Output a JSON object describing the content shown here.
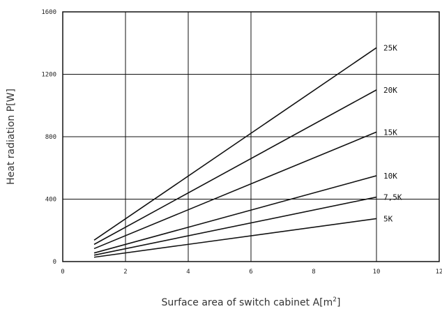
{
  "chart_data": {
    "type": "line",
    "title": "",
    "xlabel": "Surface area of switch cabinet A[m",
    "xlabel_superscript": "2",
    "xlabel_suffix": "]",
    "ylabel": "Heat radiation P[W]",
    "xlim": [
      0,
      12
    ],
    "ylim": [
      0,
      1600
    ],
    "x_ticks": [
      0,
      2,
      4,
      6,
      8,
      10,
      12
    ],
    "y_ticks": [
      0,
      400,
      800,
      1200,
      1600
    ],
    "major_grid_x": [
      2,
      4,
      6,
      10
    ],
    "major_grid_y": [
      400,
      800,
      1200
    ],
    "grid": true,
    "legend": "inline-right",
    "line_color": "#111111",
    "series": [
      {
        "name": "25K",
        "x": [
          1,
          10
        ],
        "y": [
          137,
          1370
        ]
      },
      {
        "name": "20K",
        "x": [
          1,
          10
        ],
        "y": [
          110,
          1100
        ]
      },
      {
        "name": "15K",
        "x": [
          1,
          10
        ],
        "y": [
          83,
          830
        ]
      },
      {
        "name": "10K",
        "x": [
          1,
          10
        ],
        "y": [
          55,
          550
        ]
      },
      {
        "name": "7,5K",
        "x": [
          1,
          10
        ],
        "y": [
          41,
          413
        ]
      },
      {
        "name": "5K",
        "x": [
          1,
          10
        ],
        "y": [
          28,
          275
        ]
      }
    ]
  }
}
